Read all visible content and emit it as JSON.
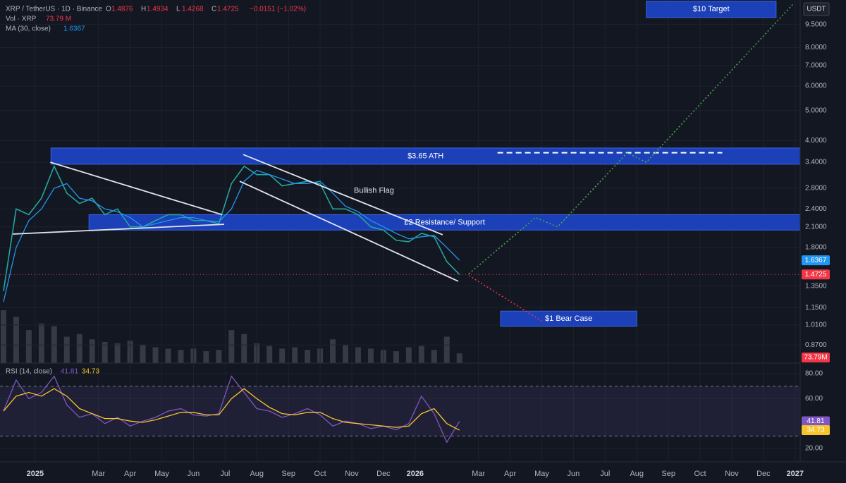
{
  "header": {
    "symbol": "XRP / TetherUS · 1D · Binance",
    "ohlc": [
      {
        "key": "O",
        "value": "1.4876"
      },
      {
        "key": "H",
        "value": "1.4934"
      },
      {
        "key": "L",
        "value": "1.4268"
      },
      {
        "key": "C",
        "value": "1.4725"
      }
    ],
    "change": "−0.0151 (−1.02%)",
    "vol": "Vol · XRP",
    "vol_value": "73.79 M",
    "ma": "MA (30, close)",
    "ma_value": "1.6367",
    "rsi": "RSI (14, close)",
    "rsi_value": "41.81",
    "rsi_ma_value": "34.73",
    "currency": "USDT"
  },
  "chart_data": [
    {
      "type": "line",
      "log_scale": true,
      "grid": true,
      "x": [
        -1.0,
        -0.6,
        -0.2,
        0.2,
        0.6,
        1.0,
        1.4,
        1.8,
        2.2,
        2.6,
        3.0,
        3.4,
        3.8,
        4.2,
        4.6,
        5.0,
        5.4,
        5.8,
        6.2,
        6.6,
        7.0,
        7.4,
        7.8,
        8.2,
        8.6,
        9.0,
        9.4,
        9.8,
        10.2,
        10.6,
        11.0,
        11.4,
        11.8,
        12.2,
        12.6,
        13.0,
        13.4
      ],
      "xlim": [
        -1.11,
        24.16
      ],
      "xticks": [
        {
          "value": 0,
          "label": "2025"
        },
        {
          "value": 2,
          "label": "Mar"
        },
        {
          "value": 3,
          "label": "Apr"
        },
        {
          "value": 4,
          "label": "May"
        },
        {
          "value": 5,
          "label": "Jun"
        },
        {
          "value": 6,
          "label": "Jul"
        },
        {
          "value": 7,
          "label": "Aug"
        },
        {
          "value": 8,
          "label": "Sep"
        },
        {
          "value": 9,
          "label": "Oct"
        },
        {
          "value": 10,
          "label": "Nov"
        },
        {
          "value": 11,
          "label": "Dec"
        },
        {
          "value": 12,
          "label": "2026"
        },
        {
          "value": 14,
          "label": "Mar"
        },
        {
          "value": 15,
          "label": "Apr"
        },
        {
          "value": 16,
          "label": "May"
        },
        {
          "value": 17,
          "label": "Jun"
        },
        {
          "value": 18,
          "label": "Jul"
        },
        {
          "value": 19,
          "label": "Aug"
        },
        {
          "value": 20,
          "label": "Sep"
        },
        {
          "value": 21,
          "label": "Oct"
        },
        {
          "value": 22,
          "label": "Nov"
        },
        {
          "value": 23,
          "label": "Dec"
        },
        {
          "value": 24,
          "label": "2027"
        }
      ],
      "ylim": [
        0.76,
        11.4
      ],
      "yticks": [
        {
          "value": 9.5,
          "label": "9.5000"
        },
        {
          "value": 8,
          "label": "8.0000"
        },
        {
          "value": 7,
          "label": "7.0000"
        },
        {
          "value": 6,
          "label": "6.0000"
        },
        {
          "value": 5,
          "label": "5.0000"
        },
        {
          "value": 4,
          "label": "4.0000"
        },
        {
          "value": 3.4,
          "label": "3.4000"
        },
        {
          "value": 2.8,
          "label": "2.8000"
        },
        {
          "value": 2.4,
          "label": "2.4000"
        },
        {
          "value": 2.1,
          "label": "2.1000"
        },
        {
          "value": 1.8,
          "label": "1.8000"
        },
        {
          "value": 1.35,
          "label": "1.3500"
        },
        {
          "value": 1.15,
          "label": "1.1500"
        },
        {
          "value": 1.01,
          "label": "1.0100"
        },
        {
          "value": 0.87,
          "label": "0.8700"
        }
      ],
      "series": [
        {
          "name": "XRP / TetherUS",
          "color": "#26a69a",
          "values": [
            1.3,
            2.4,
            2.3,
            2.6,
            3.3,
            2.7,
            2.5,
            2.6,
            2.3,
            2.4,
            2.1,
            2.1,
            2.2,
            2.3,
            2.3,
            2.2,
            2.2,
            2.15,
            2.9,
            3.3,
            3.1,
            3.1,
            2.85,
            2.9,
            2.95,
            2.9,
            2.4,
            2.4,
            2.3,
            2.1,
            2.05,
            1.9,
            1.88,
            2.0,
            1.95,
            1.62,
            1.4725
          ],
          "tag_color": "#f23645"
        },
        {
          "name": "MA (30, close)",
          "color": "#2196f3",
          "values": [
            1.2,
            1.8,
            2.2,
            2.4,
            2.8,
            2.9,
            2.6,
            2.55,
            2.4,
            2.35,
            2.25,
            2.1,
            2.15,
            2.2,
            2.25,
            2.25,
            2.2,
            2.18,
            2.4,
            2.95,
            3.2,
            3.1,
            3.0,
            2.9,
            2.9,
            2.95,
            2.7,
            2.45,
            2.35,
            2.2,
            2.1,
            2.0,
            1.92,
            1.95,
            1.97,
            1.8,
            1.6367
          ],
          "tag_color": "#2196f3"
        }
      ],
      "zones": [
        {
          "label": "$10 Target",
          "low": 10.0,
          "high": 11.3,
          "start": 19.3,
          "end": 23.4
        },
        {
          "label": "$3.65 ATH",
          "low": 3.35,
          "high": 3.78,
          "start": 0.5,
          "end": 24.16
        },
        {
          "label": "£2 Resistance/ Support",
          "low": 2.05,
          "high": 2.3,
          "start": 1.7,
          "end": 24.16
        },
        {
          "label": "$1 Bear Case",
          "low": 1.0,
          "high": 1.12,
          "start": 14.7,
          "end": 19.0
        }
      ],
      "trendlines": [
        {
          "x": [
            0.48,
            5.9
          ],
          "y": [
            3.4,
            2.3
          ]
        },
        {
          "x": [
            -0.7,
            5.97
          ],
          "y": [
            1.99,
            2.14
          ]
        },
        {
          "x": [
            6.57,
            12.87
          ],
          "y": [
            3.6,
            1.98
          ]
        },
        {
          "x": [
            6.46,
            13.36
          ],
          "y": [
            2.95,
            1.4
          ]
        }
      ],
      "ath_line": {
        "x": [
          14.6,
          21.7
        ],
        "y": [
          3.65,
          3.65
        ]
      },
      "projections": [
        {
          "color": "#4caf50",
          "x": [
            13.7,
            15.8,
            16.5,
            18.7,
            19.3,
            23.95
          ],
          "y": [
            1.48,
            2.25,
            2.1,
            3.65,
            3.4,
            11.1
          ]
        },
        {
          "color": "#f23645",
          "x": [
            13.7,
            16.0
          ],
          "y": [
            1.46,
            1.04
          ]
        }
      ],
      "annotations": [
        {
          "text": "Bullish Flag",
          "x": 10.7,
          "y": 2.75
        }
      ]
    },
    {
      "type": "bar",
      "name": "Vol · XRP",
      "color": "#363a45",
      "x": [
        -1.0,
        -0.6,
        -0.2,
        0.2,
        0.6,
        1.0,
        1.4,
        1.8,
        2.2,
        2.6,
        3.0,
        3.4,
        3.8,
        4.2,
        4.6,
        5.0,
        5.4,
        5.8,
        6.2,
        6.6,
        7.0,
        7.4,
        7.8,
        8.2,
        8.6,
        9.0,
        9.4,
        9.8,
        10.2,
        10.6,
        11.0,
        11.4,
        11.8,
        12.2,
        12.6,
        13.0,
        13.4
      ],
      "xlim": [
        -1.11,
        24.16
      ],
      "values": [
        400,
        350,
        250,
        300,
        280,
        200,
        220,
        180,
        160,
        150,
        170,
        140,
        120,
        110,
        100,
        110,
        90,
        100,
        250,
        220,
        150,
        130,
        110,
        120,
        100,
        110,
        180,
        140,
        120,
        110,
        100,
        90,
        120,
        130,
        100,
        200,
        73.79
      ],
      "value_labels": [
        null,
        null,
        null,
        null,
        null,
        null,
        null,
        null,
        null,
        null,
        null,
        null,
        null,
        null,
        null,
        null,
        null,
        null,
        null,
        null,
        null,
        null,
        null,
        null,
        null,
        null,
        null,
        null,
        null,
        null,
        null,
        null,
        null,
        null,
        null,
        null,
        "73.79M"
      ],
      "tag_color": "#f23645"
    },
    {
      "type": "line",
      "grid": true,
      "x": [
        -1.0,
        -0.6,
        -0.2,
        0.2,
        0.6,
        1.0,
        1.4,
        1.8,
        2.2,
        2.6,
        3.0,
        3.4,
        3.8,
        4.2,
        4.6,
        5.0,
        5.4,
        5.8,
        6.2,
        6.6,
        7.0,
        7.4,
        7.8,
        8.2,
        8.6,
        9.0,
        9.4,
        9.8,
        10.2,
        10.6,
        11.0,
        11.4,
        11.8,
        12.2,
        12.6,
        13.0,
        13.4
      ],
      "xlim": [
        -1.11,
        24.16
      ],
      "ylim": [
        9.3,
        88.5
      ],
      "yticks": [
        {
          "value": 80,
          "label": "80.00"
        },
        {
          "value": 60,
          "label": "60.00"
        },
        {
          "value": 20,
          "label": "20.00"
        }
      ],
      "bands": [
        30,
        70
      ],
      "series": [
        {
          "name": "RSI (14, close)",
          "color": "#7e57c2",
          "values": [
            50,
            75,
            60,
            65,
            78,
            55,
            45,
            48,
            40,
            45,
            38,
            42,
            45,
            50,
            52,
            47,
            46,
            48,
            78,
            65,
            52,
            50,
            45,
            48,
            52,
            47,
            38,
            42,
            40,
            36,
            38,
            35,
            40,
            62,
            48,
            25,
            41.81
          ],
          "tag_color": "#7e57c2"
        },
        {
          "name": "RSI MA",
          "color": "#f7c52b",
          "values": [
            50,
            62,
            65,
            62,
            68,
            62,
            52,
            48,
            44,
            44,
            42,
            41,
            43,
            46,
            49,
            49,
            47,
            47,
            60,
            68,
            60,
            53,
            48,
            47,
            49,
            49,
            44,
            41,
            40,
            39,
            38,
            37,
            38,
            48,
            52,
            40,
            34.73
          ],
          "tag_color": "#f7c52b"
        }
      ]
    }
  ]
}
